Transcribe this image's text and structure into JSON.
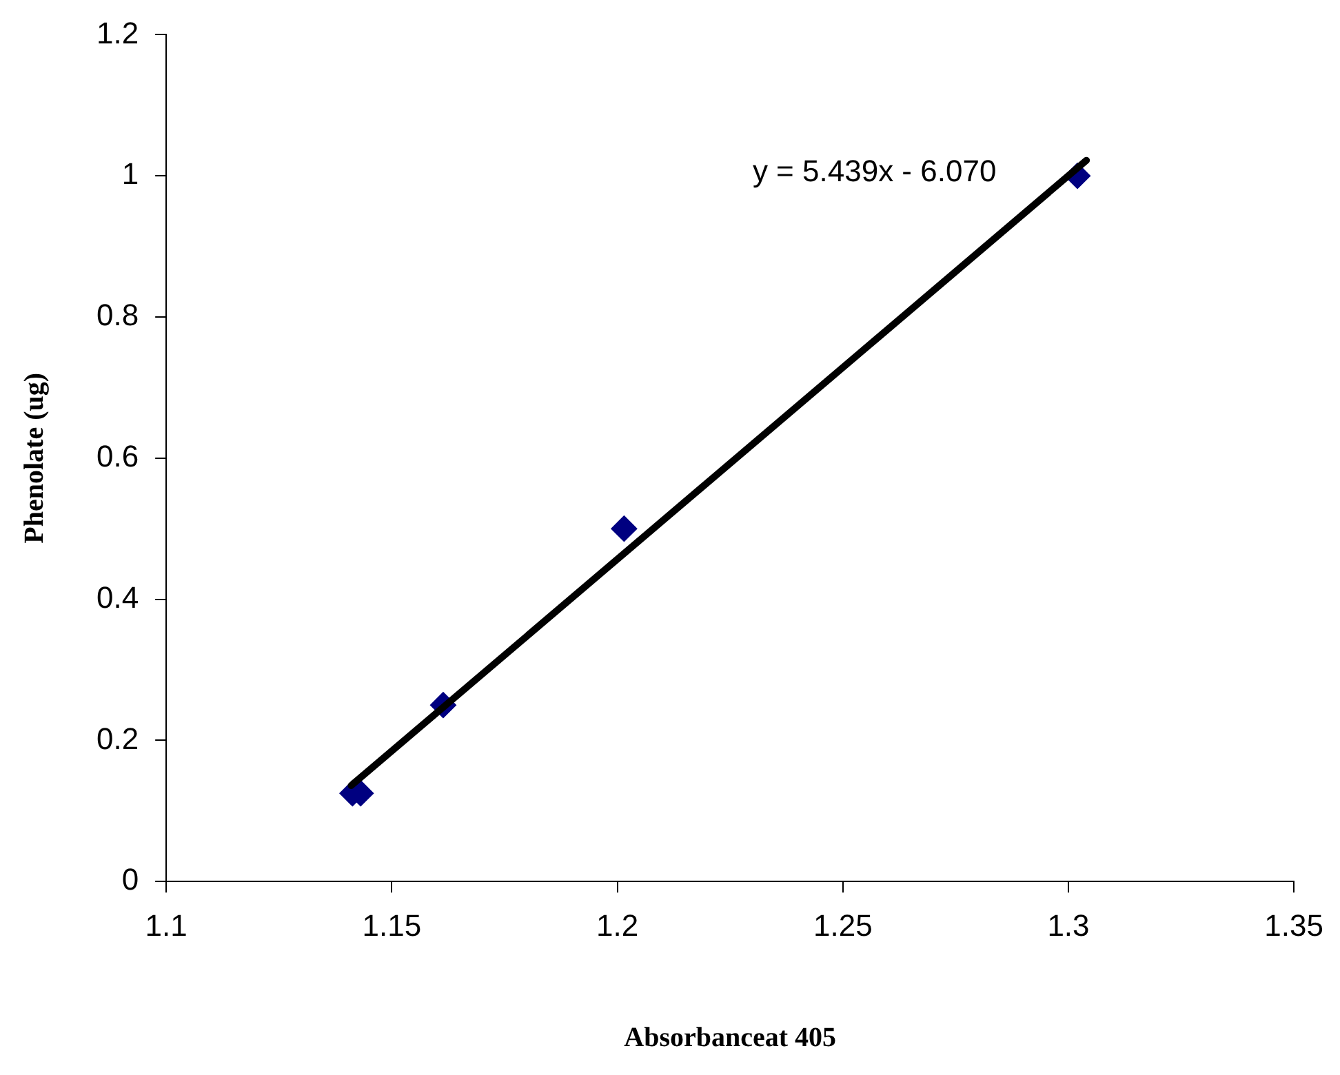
{
  "chart_data": {
    "type": "scatter",
    "xlabel": "Absorbanceat 405",
    "ylabel": "Phenolate (ug)",
    "x": [
      1.1413,
      1.1431,
      1.1614,
      1.2015,
      1.302
    ],
    "series": [
      {
        "color": "#000080",
        "marker": "diamond",
        "values": [
          0.125,
          0.125,
          0.25,
          0.5,
          1.0
        ]
      },
      {
        "type": "line",
        "color": "#000000",
        "marker": "none",
        "x": [
          1.141,
          1.304
        ],
        "values": [
          0.136,
          1.022
        ]
      }
    ],
    "xlim": [
      1.1,
      1.35
    ],
    "xticks": [
      1.1,
      1.15,
      1.2,
      1.25,
      1.3,
      1.35
    ],
    "ylim": [
      0,
      1.2
    ],
    "yticks": [
      0,
      0.2,
      0.4,
      0.6,
      0.8,
      1,
      1.2
    ],
    "grid": false,
    "legend": false,
    "annotations": [
      "y = 5.439x - 6.070"
    ]
  }
}
